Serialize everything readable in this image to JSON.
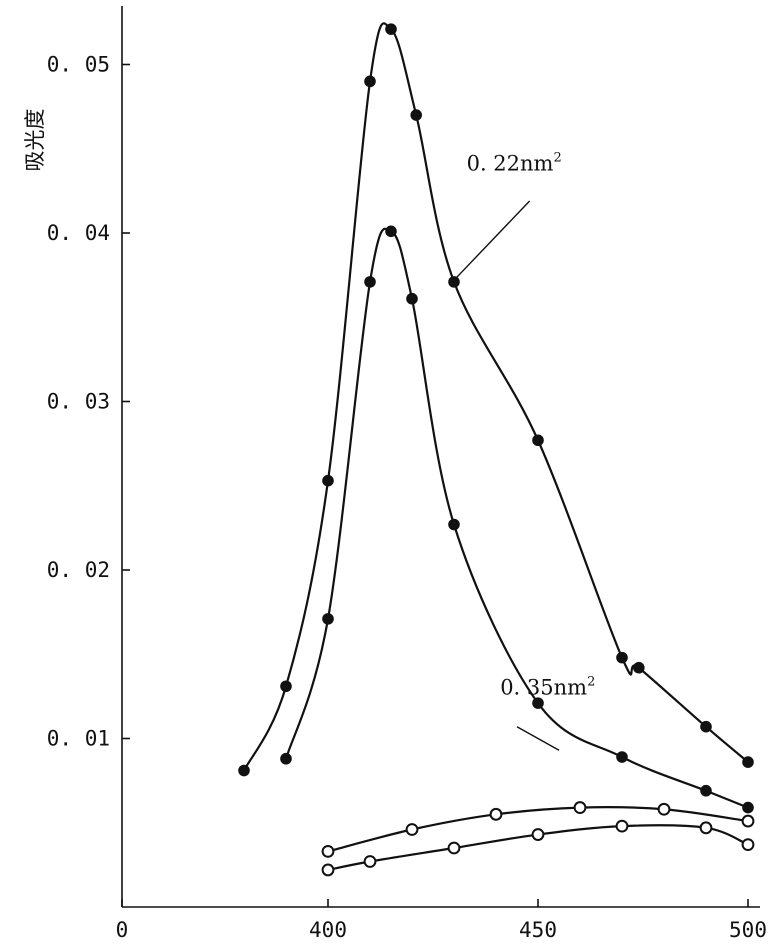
{
  "chart_data": {
    "type": "line",
    "title": "",
    "xlabel": "",
    "ylabel": "吸光度",
    "xlim": [
      0,
      500
    ],
    "ylim": [
      0,
      0.055
    ],
    "x_ticks": [
      {
        "value": 0,
        "label": "0"
      },
      {
        "value": 400,
        "label": "400"
      },
      {
        "value": 450,
        "label": "450"
      },
      {
        "value": 500,
        "label": "500"
      }
    ],
    "y_ticks": [
      {
        "value": 0.01,
        "label": "0. 01"
      },
      {
        "value": 0.02,
        "label": "0. 02"
      },
      {
        "value": 0.03,
        "label": "0. 03"
      },
      {
        "value": 0.04,
        "label": "0. 04"
      },
      {
        "value": 0.05,
        "label": "0. 05"
      }
    ],
    "grid": false,
    "series": [
      {
        "marker": "filled",
        "points": [
          [
            380,
            0.0081
          ],
          [
            390,
            0.0131
          ],
          [
            400,
            0.0253
          ],
          [
            410,
            0.049
          ],
          [
            415,
            0.0521
          ],
          [
            421,
            0.047
          ],
          [
            430,
            0.0371
          ],
          [
            450,
            0.0277
          ],
          [
            470,
            0.0148
          ],
          [
            474,
            0.0142
          ],
          [
            490,
            0.0107
          ],
          [
            500,
            0.0086
          ]
        ]
      },
      {
        "marker": "filled",
        "points": [
          [
            390,
            0.0088
          ],
          [
            400,
            0.0171
          ],
          [
            410,
            0.0371
          ],
          [
            415,
            0.0401
          ],
          [
            420,
            0.0361
          ],
          [
            430,
            0.0227
          ],
          [
            450,
            0.0121
          ],
          [
            470,
            0.0089
          ],
          [
            490,
            0.0069
          ],
          [
            500,
            0.0059
          ]
        ]
      },
      {
        "marker": "open",
        "points": [
          [
            400,
            0.0033
          ],
          [
            420,
            0.0046
          ],
          [
            440,
            0.0055
          ],
          [
            460,
            0.0059
          ],
          [
            480,
            0.0058
          ],
          [
            500,
            0.0051
          ]
        ]
      },
      {
        "marker": "open",
        "points": [
          [
            400,
            0.0022
          ],
          [
            410,
            0.0027
          ],
          [
            430,
            0.0035
          ],
          [
            450,
            0.0043
          ],
          [
            470,
            0.0048
          ],
          [
            490,
            0.0047
          ],
          [
            500,
            0.0037
          ]
        ]
      }
    ],
    "annotations": [
      {
        "text": "0. 22nm",
        "sup": "2",
        "label_at": [
          433,
          0.0437
        ],
        "line_from": [
          448,
          0.0419
        ],
        "line_to": [
          430,
          0.0372
        ]
      },
      {
        "text": "0. 35nm",
        "sup": "2",
        "label_at": [
          441,
          0.0126
        ],
        "line_from": [
          445,
          0.0107
        ],
        "line_to": [
          455,
          0.0093
        ]
      }
    ]
  }
}
